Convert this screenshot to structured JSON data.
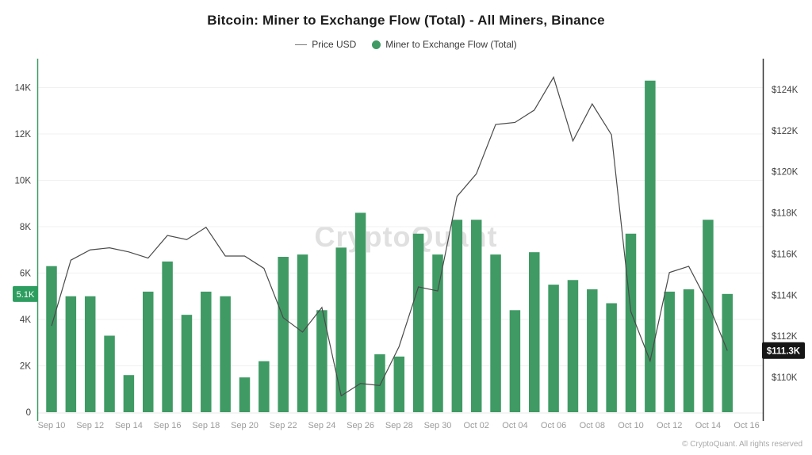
{
  "title": "Bitcoin: Miner to Exchange Flow (Total) - All Miners, Binance",
  "legend": {
    "price_label": "Price USD",
    "flow_label": "Miner to Exchange Flow (Total)"
  },
  "watermark": "CryptoQuant",
  "footer": "© CryptoQuant. All rights reserved",
  "colors": {
    "bar": "#3F9A64",
    "price_line": "#4a4a4a",
    "left_spine": "#3F9A64",
    "right_spine": "#333333",
    "flow_badge_bg": "#2E9E60",
    "price_badge_bg": "#161616",
    "grid": "#f1f1f1",
    "axis_label": "#3f3f3f",
    "x_label": "#9b9b9b"
  },
  "chart_data": {
    "type": "bar",
    "title": "Bitcoin: Miner to Exchange Flow (Total) - All Miners, Binance",
    "grid": "horizontal",
    "legend_position": "top",
    "categories": [
      "Sep 10",
      "Sep 11",
      "Sep 12",
      "Sep 13",
      "Sep 14",
      "Sep 15",
      "Sep 16",
      "Sep 17",
      "Sep 18",
      "Sep 19",
      "Sep 20",
      "Sep 21",
      "Sep 22",
      "Sep 23",
      "Sep 24",
      "Sep 25",
      "Sep 26",
      "Sep 27",
      "Sep 28",
      "Sep 29",
      "Sep 30",
      "Oct 01",
      "Oct 02",
      "Oct 03",
      "Oct 04",
      "Oct 05",
      "Oct 06",
      "Oct 07",
      "Oct 08",
      "Oct 09",
      "Oct 10",
      "Oct 11",
      "Oct 12",
      "Oct 13",
      "Oct 14",
      "Oct 15"
    ],
    "series": [
      {
        "name": "Miner to Exchange Flow (Total)",
        "type": "bar",
        "axis": "left",
        "values": [
          6300,
          5000,
          5000,
          3300,
          1600,
          5200,
          6500,
          4200,
          5200,
          5000,
          1500,
          2200,
          6700,
          6800,
          4400,
          7100,
          8600,
          2500,
          2400,
          7700,
          6800,
          8300,
          8300,
          6800,
          4400,
          6900,
          5500,
          5700,
          5300,
          4700,
          7700,
          14300,
          5200,
          5300,
          8300,
          5100
        ]
      },
      {
        "name": "Price USD",
        "type": "line",
        "axis": "right",
        "unit": "thousand USD",
        "values": [
          112.5,
          115.7,
          116.2,
          116.3,
          116.1,
          115.8,
          116.9,
          116.7,
          117.3,
          115.9,
          115.9,
          115.3,
          112.9,
          112.2,
          113.4,
          109.1,
          109.7,
          109.6,
          111.5,
          114.4,
          114.2,
          118.8,
          119.9,
          122.3,
          122.4,
          123.0,
          124.6,
          121.5,
          123.3,
          121.8,
          113.2,
          110.8,
          115.1,
          115.4,
          113.6,
          111.3
        ]
      }
    ],
    "left_axis": {
      "range": [
        0,
        15100
      ],
      "ticks": [
        {
          "label": "0",
          "value": 0
        },
        {
          "label": "2K",
          "value": 2000
        },
        {
          "label": "4K",
          "value": 4000
        },
        {
          "label": "6K",
          "value": 6000
        },
        {
          "label": "8K",
          "value": 8000
        },
        {
          "label": "10K",
          "value": 10000
        },
        {
          "label": "12K",
          "value": 12000
        },
        {
          "label": "14K",
          "value": 14000
        }
      ],
      "latest_badge": {
        "text": "5.1K",
        "value": 5100
      }
    },
    "right_axis": {
      "range": [
        108.3,
        125.4
      ],
      "ticks": [
        {
          "label": "$110K",
          "value": 110
        },
        {
          "label": "$112K",
          "value": 112
        },
        {
          "label": "$114K",
          "value": 114
        },
        {
          "label": "$116K",
          "value": 116
        },
        {
          "label": "$118K",
          "value": 118
        },
        {
          "label": "$120K",
          "value": 120
        },
        {
          "label": "$122K",
          "value": 122
        },
        {
          "label": "$124K",
          "value": 124
        }
      ],
      "latest_badge": {
        "text": "$111.3K",
        "value": 111.3
      }
    },
    "x_ticks": [
      "Sep 10",
      "Sep 12",
      "Sep 14",
      "Sep 16",
      "Sep 18",
      "Sep 20",
      "Sep 22",
      "Sep 24",
      "Sep 26",
      "Sep 28",
      "Sep 30",
      "Oct 02",
      "Oct 04",
      "Oct 06",
      "Oct 08",
      "Oct 10",
      "Oct 12",
      "Oct 14",
      "Oct 16"
    ]
  }
}
